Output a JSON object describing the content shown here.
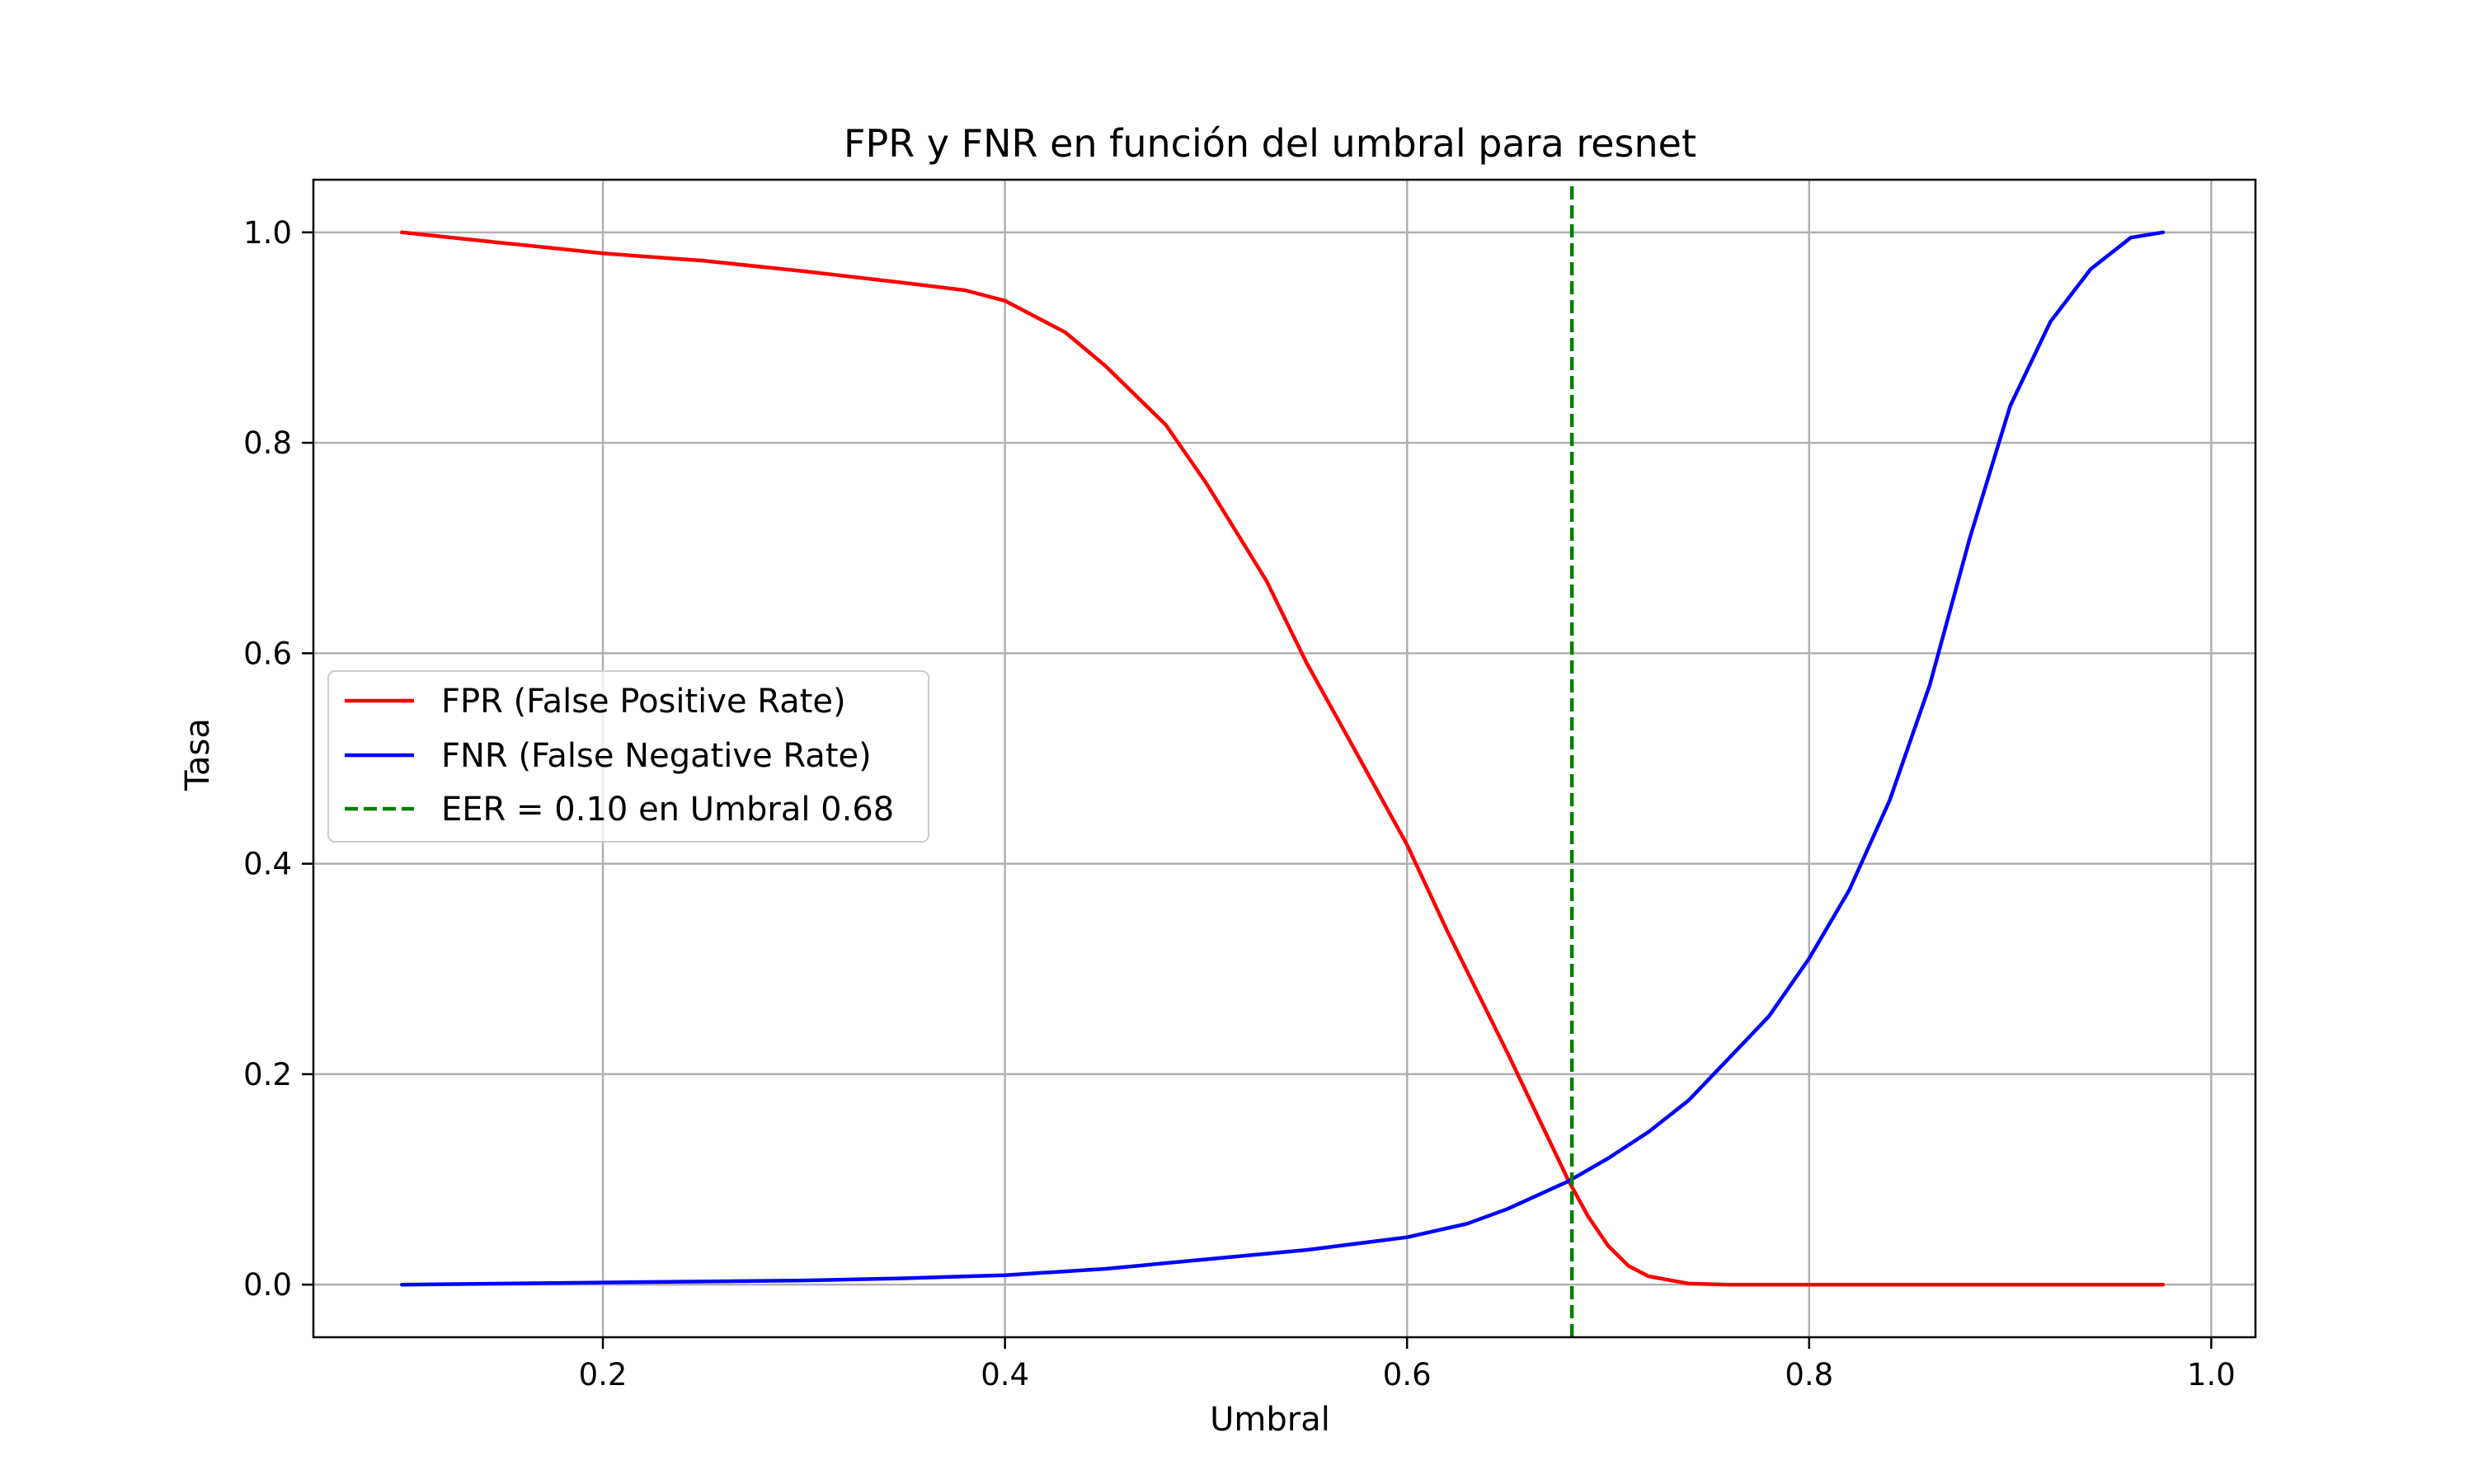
{
  "chart_data": {
    "type": "line",
    "title": "FPR y FNR en función del umbral para resnet",
    "xlabel": "Umbral",
    "ylabel": "Tasa",
    "xlim": [
      0.056,
      1.022
    ],
    "ylim": [
      -0.05,
      1.05
    ],
    "xticks": [
      0.2,
      0.4,
      0.6,
      0.8,
      1.0
    ],
    "yticks": [
      0.0,
      0.2,
      0.4,
      0.6,
      0.8,
      1.0
    ],
    "xtick_labels": [
      "0.2",
      "0.4",
      "0.6",
      "0.8",
      "1.0"
    ],
    "ytick_labels": [
      "0.0",
      "0.2",
      "0.4",
      "0.6",
      "0.8",
      "1.0"
    ],
    "grid": true,
    "legend_position": "center-left",
    "series": [
      {
        "name": "FPR (False Positive Rate)",
        "color": "#ff0000",
        "style": "solid",
        "x": [
          0.1,
          0.15,
          0.2,
          0.25,
          0.3,
          0.35,
          0.38,
          0.4,
          0.43,
          0.45,
          0.48,
          0.5,
          0.53,
          0.55,
          0.57,
          0.6,
          0.62,
          0.65,
          0.67,
          0.68,
          0.69,
          0.7,
          0.71,
          0.72,
          0.74,
          0.76,
          0.8,
          0.9,
          0.976
        ],
        "y": [
          1.0,
          0.99,
          0.98,
          0.973,
          0.963,
          0.952,
          0.945,
          0.935,
          0.905,
          0.873,
          0.817,
          0.762,
          0.669,
          0.591,
          0.522,
          0.418,
          0.336,
          0.22,
          0.14,
          0.1,
          0.065,
          0.037,
          0.018,
          0.008,
          0.001,
          0.0,
          0.0,
          0.0,
          0.0
        ]
      },
      {
        "name": "FNR (False Negative Rate)",
        "color": "#0000ff",
        "style": "solid",
        "x": [
          0.1,
          0.2,
          0.3,
          0.35,
          0.4,
          0.45,
          0.5,
          0.55,
          0.6,
          0.63,
          0.65,
          0.68,
          0.7,
          0.72,
          0.74,
          0.76,
          0.78,
          0.8,
          0.82,
          0.84,
          0.86,
          0.88,
          0.9,
          0.92,
          0.94,
          0.96,
          0.976
        ],
        "y": [
          0.0,
          0.002,
          0.004,
          0.006,
          0.009,
          0.015,
          0.024,
          0.033,
          0.045,
          0.058,
          0.072,
          0.098,
          0.12,
          0.145,
          0.175,
          0.215,
          0.255,
          0.31,
          0.375,
          0.46,
          0.57,
          0.71,
          0.835,
          0.915,
          0.965,
          0.995,
          1.0
        ]
      },
      {
        "name": "EER = 0.10 en Umbral 0.68",
        "color": "#008000",
        "style": "dashed",
        "x": [
          0.682,
          0.682
        ],
        "y": [
          -0.05,
          1.05
        ]
      }
    ]
  }
}
